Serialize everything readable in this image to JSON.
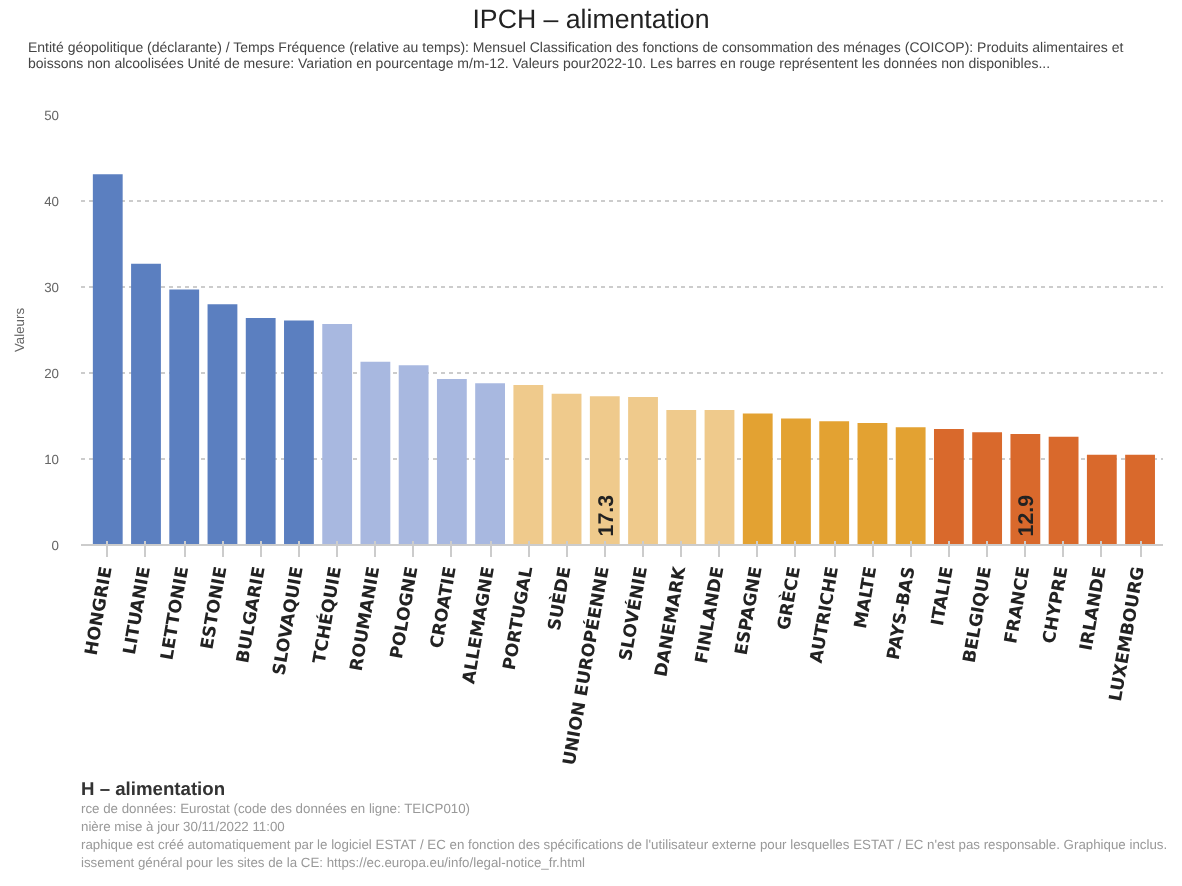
{
  "chart_data": {
    "type": "bar",
    "title": "IPCH – alimentation",
    "subtitle": "Entité géopolitique (déclarante) / Temps  Fréquence (relative au temps): Mensuel  Classification des fonctions de consommation des ménages (COICOP): Produits alimentaires et boissons non alcoolisées  Unité de mesure: Variation en pourcentage m/m-12. Valeurs pour2022-10. Les barres en rouge représentent les données non disponibles...",
    "ylabel": "Valeurs",
    "categories": [
      "HONGRIE",
      "LITUANIE",
      "LETTONIE",
      "ESTONIE",
      "BULGARIE",
      "SLOVAQUIE",
      "TCHÉQUIE",
      "ROUMANIE",
      "POLOGNE",
      "CROATIE",
      "ALLEMAGNE",
      "PORTUGAL",
      "SUÈDE",
      "UNION EUROPÉENNE",
      "SLOVÉNIE",
      "DANEMARK",
      "FINLANDE",
      "ESPAGNE",
      "GRÈCE",
      "AUTRICHE",
      "MALTE",
      "PAYS-BAS",
      "ITALIE",
      "BELGIQUE",
      "FRANCE",
      "CHYPRE",
      "IRLANDE",
      "LUXEMBOURG"
    ],
    "values": [
      43.1,
      32.7,
      29.7,
      28.0,
      26.4,
      26.1,
      25.7,
      21.3,
      20.9,
      19.3,
      18.8,
      18.6,
      17.6,
      17.3,
      17.2,
      15.7,
      15.7,
      15.3,
      14.7,
      14.4,
      14.2,
      13.7,
      13.5,
      13.1,
      12.9,
      12.6,
      10.5,
      10.5
    ],
    "colors": [
      "#5b7fc0",
      "#5b7fc0",
      "#5b7fc0",
      "#5b7fc0",
      "#5b7fc0",
      "#5b7fc0",
      "#a8b8e0",
      "#a8b8e0",
      "#a8b8e0",
      "#a8b8e0",
      "#a8b8e0",
      "#efca8c",
      "#efca8c",
      "#efca8c",
      "#efca8c",
      "#efca8c",
      "#efca8c",
      "#e3a232",
      "#e3a232",
      "#e3a232",
      "#e3a232",
      "#e3a232",
      "#d9692c",
      "#d9692c",
      "#d9692c",
      "#d9692c",
      "#d9692c",
      "#d9692c"
    ],
    "value_labels": [
      null,
      null,
      null,
      null,
      null,
      null,
      null,
      null,
      null,
      null,
      null,
      null,
      null,
      "17.3",
      null,
      null,
      null,
      null,
      null,
      null,
      null,
      null,
      null,
      null,
      "12.9",
      null,
      null,
      null
    ],
    "ylim": [
      0,
      50
    ],
    "yticks": [
      0,
      10,
      20,
      30,
      40,
      50
    ],
    "grid": "y",
    "annotations": [
      "H – alimentation",
      "rce de données: Eurostat (code des données en ligne: TEICP010)",
      "nière mise à jour 30/11/2022 11:00",
      "raphique est créé automatiquement par le logiciel ESTAT / EC en fonction des spécifications de l'utilisateur externe pour lesquelles ESTAT / EC n'est pas responsable. Graphique inclus.",
      "issement général pour les sites de la CE: https://ec.europa.eu/info/legal-notice_fr.html"
    ]
  }
}
